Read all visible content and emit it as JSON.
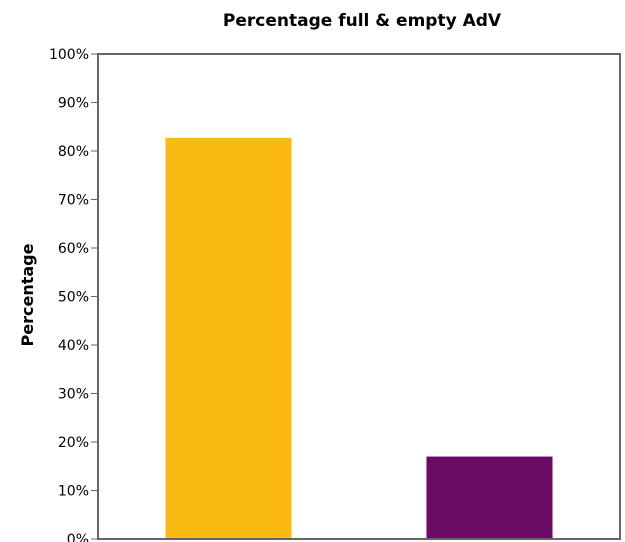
{
  "chart_data": {
    "type": "bar",
    "title": "Percentage full & empty AdV",
    "xlabel": "",
    "ylabel": "Percentage",
    "categories": [
      "",
      ""
    ],
    "values": [
      82.7,
      17.0
    ],
    "colors": [
      "#FBBA12",
      "#6A0A62"
    ],
    "ylim": [
      0,
      100
    ],
    "yticks": [
      "0%",
      "10%",
      "20%",
      "30%",
      "40%",
      "50%",
      "60%",
      "70%",
      "80%",
      "90%",
      "100%"
    ],
    "grid": false,
    "legend": "none"
  }
}
